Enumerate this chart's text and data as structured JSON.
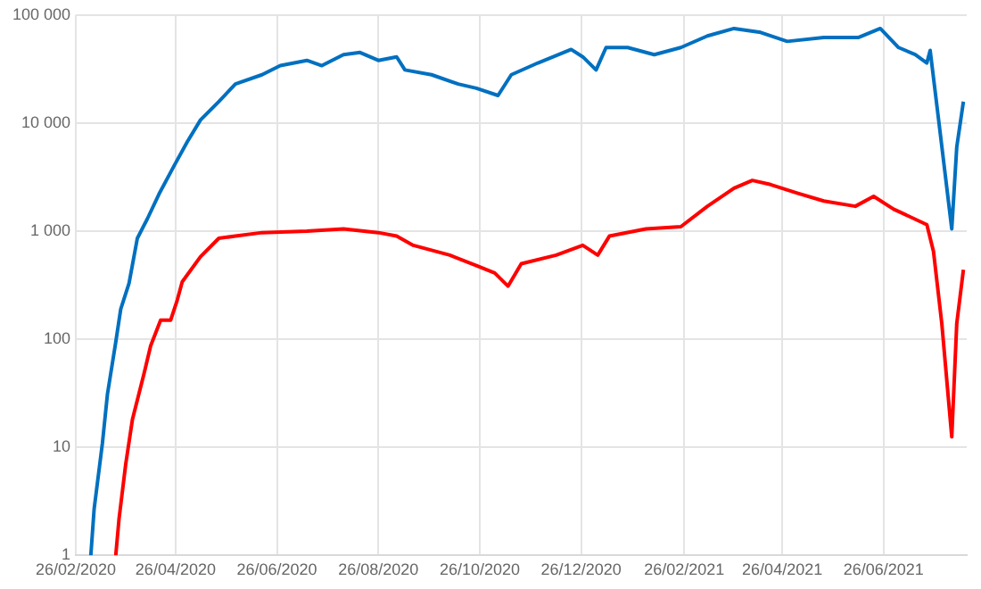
{
  "chart_data": {
    "type": "line",
    "log": "y",
    "grid": true,
    "legend": false,
    "marker": "none",
    "line_style": "solid",
    "xlim": [
      "2020-02-26",
      "2021-08-15"
    ],
    "xticks": [
      {
        "value": "2020-02-26",
        "label": "26/02/2020"
      },
      {
        "value": "2020-04-26",
        "label": "26/04/2020"
      },
      {
        "value": "2020-06-26",
        "label": "26/06/2020"
      },
      {
        "value": "2020-08-26",
        "label": "26/08/2020"
      },
      {
        "value": "2020-10-26",
        "label": "26/10/2020"
      },
      {
        "value": "2020-12-26",
        "label": "26/12/2020"
      },
      {
        "value": "2021-02-26",
        "label": "26/02/2021"
      },
      {
        "value": "2021-04-26",
        "label": "26/04/2021"
      },
      {
        "value": "2021-06-26",
        "label": "26/06/2021"
      }
    ],
    "ylim": [
      1,
      100000
    ],
    "yticks": [
      {
        "value": 1,
        "label": "1"
      },
      {
        "value": 10,
        "label": "10"
      },
      {
        "value": 100,
        "label": "100"
      },
      {
        "value": 1000,
        "label": "1 000"
      },
      {
        "value": 10000,
        "label": "10 000"
      },
      {
        "value": 100000,
        "label": "100 000"
      }
    ],
    "series": [
      {
        "color": "#0070c0",
        "x": [
          "2020-03-06",
          "2020-03-08",
          "2020-03-13",
          "2020-03-16",
          "2020-03-21",
          "2020-03-24",
          "2020-03-29",
          "2020-04-03",
          "2020-04-09",
          "2020-04-16",
          "2020-04-25",
          "2020-05-03",
          "2020-05-11",
          "2020-05-22",
          "2020-06-01",
          "2020-06-17",
          "2020-06-28",
          "2020-07-14",
          "2020-07-23",
          "2020-08-05",
          "2020-08-15",
          "2020-08-26",
          "2020-09-06",
          "2020-09-11",
          "2020-09-27",
          "2020-10-13",
          "2020-10-24",
          "2020-11-06",
          "2020-11-14",
          "2020-11-30",
          "2020-12-20",
          "2020-12-27",
          "2021-01-04",
          "2021-01-10",
          "2021-01-23",
          "2021-02-08",
          "2021-02-24",
          "2021-03-12",
          "2021-03-28",
          "2021-04-13",
          "2021-04-29",
          "2021-05-21",
          "2021-06-11",
          "2021-06-24",
          "2021-07-05",
          "2021-07-15",
          "2021-07-22",
          "2021-07-24",
          "2021-07-29",
          "2021-08-06",
          "2021-08-09",
          "2021-08-13"
        ],
        "values": [
          1,
          2.7,
          11,
          31,
          94,
          190,
          330,
          860,
          1300,
          2200,
          4000,
          6700,
          10700,
          15800,
          23000,
          28000,
          34000,
          38000,
          34000,
          43000,
          45000,
          38000,
          41000,
          31000,
          28000,
          23000,
          21000,
          18000,
          28000,
          36000,
          48000,
          41000,
          31000,
          50000,
          50000,
          43000,
          50000,
          64000,
          75000,
          69000,
          57000,
          62000,
          62000,
          75000,
          50000,
          43000,
          36000,
          47000,
          11000,
          1050,
          6000,
          15800
        ]
      },
      {
        "color": "#ff0000",
        "x": [
          "2020-03-21",
          "2020-03-23",
          "2020-03-27",
          "2020-03-31",
          "2020-04-07",
          "2020-04-11",
          "2020-04-17",
          "2020-04-23",
          "2020-04-27",
          "2020-04-30",
          "2020-05-11",
          "2020-05-22",
          "2020-06-01",
          "2020-06-17",
          "2020-07-14",
          "2020-08-05",
          "2020-08-26",
          "2020-09-06",
          "2020-09-16",
          "2020-10-08",
          "2020-10-24",
          "2020-11-04",
          "2020-11-12",
          "2020-11-20",
          "2020-12-11",
          "2020-12-27",
          "2021-01-05",
          "2021-01-12",
          "2021-02-03",
          "2021-02-24",
          "2021-03-12",
          "2021-03-28",
          "2021-04-08",
          "2021-04-19",
          "2021-05-05",
          "2021-05-21",
          "2021-06-09",
          "2021-06-20",
          "2021-07-02",
          "2021-07-22",
          "2021-07-26",
          "2021-07-31",
          "2021-08-06",
          "2021-08-09",
          "2021-08-13"
        ],
        "values": [
          1,
          2.2,
          7,
          18,
          48,
          87,
          150,
          150,
          230,
          340,
          580,
          860,
          900,
          970,
          1000,
          1050,
          970,
          900,
          740,
          600,
          480,
          410,
          310,
          500,
          600,
          740,
          600,
          900,
          1050,
          1100,
          1700,
          2500,
          2950,
          2700,
          2250,
          1900,
          1700,
          2100,
          1600,
          1150,
          650,
          140,
          12.5,
          140,
          440
        ]
      }
    ]
  }
}
